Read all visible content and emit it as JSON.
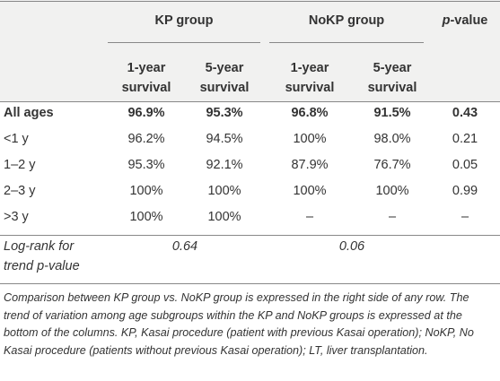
{
  "header": {
    "groups": [
      "KP group",
      "NoKP group"
    ],
    "p_value": [
      "p",
      "-value"
    ],
    "subheaders": [
      [
        "1-year",
        "survival"
      ],
      [
        "5-year",
        "survival"
      ],
      [
        "1-year",
        "survival"
      ],
      [
        "5-year",
        "survival"
      ]
    ]
  },
  "table": {
    "rows": [
      [
        "All ages",
        "96.9%",
        "95.3%",
        "96.8%",
        "91.5%",
        "0.43"
      ],
      [
        "<1 y",
        "96.2%",
        "94.5%",
        "100%",
        "98.0%",
        "0.21"
      ],
      [
        "1–2 y",
        "95.3%",
        "92.1%",
        "87.9%",
        "76.7%",
        "0.05"
      ],
      [
        "2–3 y",
        "100%",
        "100%",
        "100%",
        "100%",
        "0.99"
      ],
      [
        ">3 y",
        "100%",
        "100%",
        "–",
        "–",
        "–"
      ]
    ]
  },
  "trend": {
    "label": [
      "Log-rank for",
      "trend p-value"
    ],
    "kp": "0.64",
    "nokp": "0.06"
  },
  "footnote": "Comparison between KP group vs. NoKP group is expressed in the right side of any row. The trend of variation among age subgroups within the KP and NoKP groups is expressed at the bottom of the columns. KP, Kasai procedure (patient with previous Kasai operation); NoKP, No Kasai procedure (patients without previous Kasai operation); LT, liver transplantation."
}
